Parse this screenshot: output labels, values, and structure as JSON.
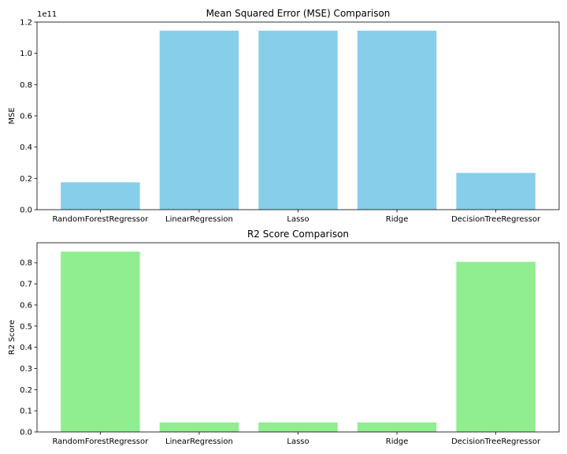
{
  "chart_data": [
    {
      "type": "bar",
      "title": "Mean Squared Error (MSE) Comparison",
      "xlabel": "",
      "ylabel": "MSE",
      "scale_label": "1e11",
      "categories": [
        "RandomForestRegressor",
        "LinearRegression",
        "Lasso",
        "Ridge",
        "DecisionTreeRegressor"
      ],
      "values": [
        17500000000,
        114500000000,
        114500000000,
        114500000000,
        23500000000
      ],
      "ylim": [
        0,
        120000000000
      ],
      "yticks": [
        0,
        20000000000,
        40000000000,
        60000000000,
        80000000000,
        100000000000,
        120000000000
      ],
      "ytick_labels": [
        "0.0",
        "0.2",
        "0.4",
        "0.6",
        "0.8",
        "1.0",
        "1.2"
      ],
      "bar_color": "#87CEEB",
      "grid": false,
      "legend": "none"
    },
    {
      "type": "bar",
      "title": "R2 Score Comparison",
      "xlabel": "",
      "ylabel": "R2 Score",
      "categories": [
        "RandomForestRegressor",
        "LinearRegression",
        "Lasso",
        "Ridge",
        "DecisionTreeRegressor"
      ],
      "values": [
        0.852,
        0.045,
        0.045,
        0.045,
        0.804
      ],
      "ylim": [
        0,
        0.894
      ],
      "yticks": [
        0,
        0.1,
        0.2,
        0.3,
        0.4,
        0.5,
        0.6,
        0.7,
        0.8
      ],
      "ytick_labels": [
        "0.0",
        "0.1",
        "0.2",
        "0.3",
        "0.4",
        "0.5",
        "0.6",
        "0.7",
        "0.8"
      ],
      "bar_color": "#90EE90",
      "grid": false,
      "legend": "none"
    }
  ]
}
